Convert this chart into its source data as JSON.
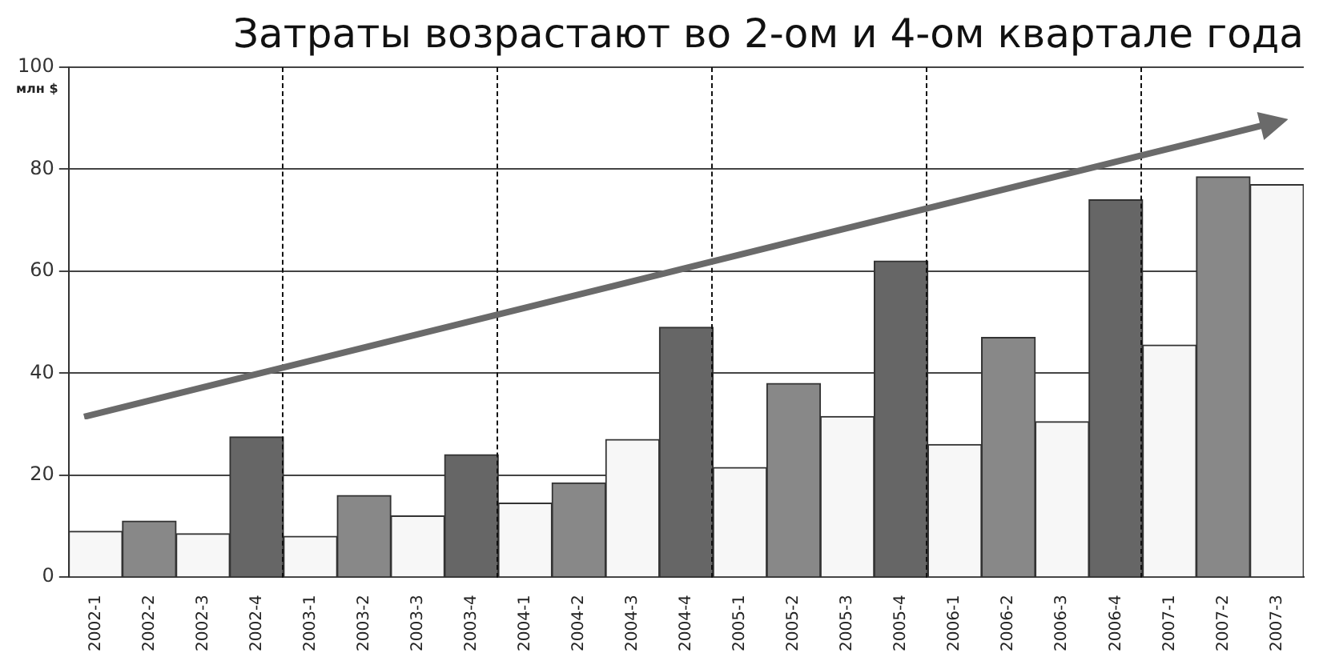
{
  "chart_data": {
    "type": "bar",
    "title": "Затраты возрастают во 2-ом и 4-ом квартале года",
    "ylabel": "млн $",
    "categories": [
      "2002-1",
      "2002-2",
      "2002-3",
      "2002-4",
      "2003-1",
      "2003-2",
      "2003-3",
      "2003-4",
      "2004-1",
      "2004-2",
      "2004-3",
      "2004-4",
      "2005-1",
      "2005-2",
      "2005-3",
      "2005-4",
      "2006-1",
      "2006-2",
      "2006-3",
      "2006-4",
      "2007-1",
      "2007-2",
      "2007-3"
    ],
    "series": [
      {
        "values": [
          9,
          11,
          8.5,
          27.5,
          8,
          16,
          12,
          24,
          14.5,
          18.5,
          27,
          49,
          21.5,
          38,
          31.5,
          62,
          26,
          47,
          30.5,
          74,
          45.5,
          78.5,
          77
        ],
        "colors": [
          "#f7f7f7",
          "#888888",
          "#f7f7f7",
          "#666666",
          "#f7f7f7",
          "#888888",
          "#f7f7f7",
          "#666666",
          "#f7f7f7",
          "#888888",
          "#f7f7f7",
          "#666666",
          "#f7f7f7",
          "#888888",
          "#f7f7f7",
          "#666666",
          "#f7f7f7",
          "#888888",
          "#f7f7f7",
          "#666666",
          "#f7f7f7",
          "#888888",
          "#f7f7f7"
        ]
      }
    ],
    "ylim": [
      0,
      100
    ],
    "yticks": [
      0,
      20,
      40,
      60,
      80,
      100
    ],
    "grid": "y",
    "legend": false
  }
}
